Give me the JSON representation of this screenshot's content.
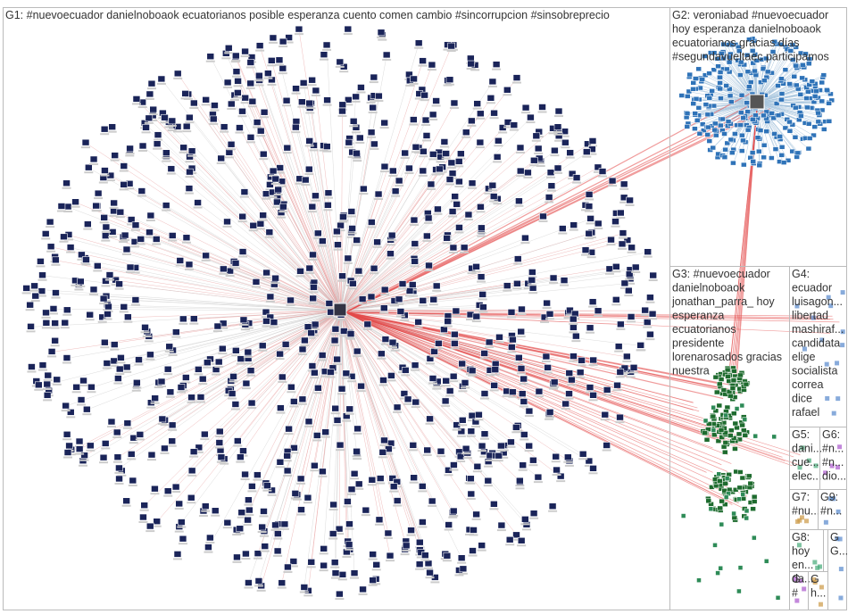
{
  "groups": [
    {
      "label": [
        "G1: #nuevoecuador danielnoboaok ecuatorianos posible esperanza cuento comen cambio #sincorrupcion #sinsobreprecio"
      ]
    },
    {
      "label": [
        "G2: veroniabad #nuevoecuador",
        "hoy esperanza danielnoboaok",
        "ecuatorianos gracias días",
        "#segundavueltaec participamos"
      ]
    },
    {
      "label": [
        "G3: #nuevoecuador",
        "danielnoboaok",
        "jonathan_parra_ hoy",
        "esperanza",
        "ecuatorianos",
        "presidente",
        "lorenarosados gracias",
        "nuestra"
      ]
    },
    {
      "label": [
        "G4:",
        "ecuador",
        "luisagon...",
        "libertad",
        "mashiraf...",
        "candidata",
        "elige",
        "socialista",
        "correa",
        "dice",
        "rafael"
      ]
    },
    {
      "label": [
        "G5:",
        "dani...",
        "cue...",
        "elec..."
      ]
    },
    {
      "label": [
        "G6:",
        "#n...",
        "#n...",
        "dio..."
      ]
    },
    {
      "label": [
        "G7:",
        "#nu..."
      ]
    },
    {
      "label": [
        "G9:",
        "#n..."
      ]
    },
    {
      "label": [
        "G8:",
        "hoy",
        "en...",
        "da..."
      ]
    },
    {
      "label": [
        "G",
        "#"
      ]
    },
    {
      "label": [
        "G",
        "h..."
      ]
    },
    {
      "label": [
        "G",
        "G..."
      ]
    }
  ]
}
